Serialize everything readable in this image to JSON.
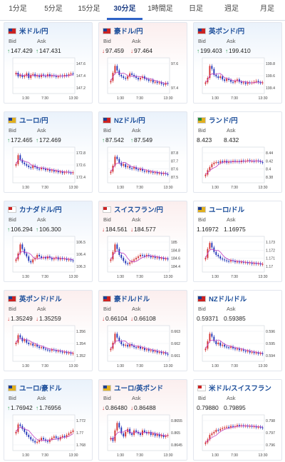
{
  "tabs": [
    "1分足",
    "5分足",
    "15分足",
    "30分足",
    "1時間足",
    "日足",
    "週足",
    "月足"
  ],
  "active_tab": 3,
  "labels": {
    "bid": "Bid",
    "ask": "Ask"
  },
  "colors": {
    "accent": "#2f63c7",
    "up_arrow": "#2e9d52",
    "down_arrow": "#d03030",
    "candle_up": "#d23030",
    "candle_down": "#2438b8",
    "ma_line": "#c040c0"
  },
  "cards": [
    {
      "title": "米ドル/円",
      "dir": "up",
      "bid": "147.429",
      "ask": "147.431",
      "flag": [
        "#1e3d8f",
        "#cc2222"
      ],
      "y_ticks": [
        "147.6",
        "147.4",
        "147.2"
      ],
      "x_ticks": [
        "1:30",
        "7:30",
        "13:30"
      ],
      "trend": [
        0.62,
        0.5,
        0.55,
        0.48,
        0.52,
        0.6,
        0.45,
        0.55,
        0.58,
        0.5,
        0.54,
        0.48,
        0.56,
        0.52,
        0.5,
        0.57,
        0.5,
        0.54,
        0.52,
        0.48,
        0.5,
        0.53,
        0.5,
        0.55,
        0.52,
        0.57,
        0.6,
        0.58
      ]
    },
    {
      "title": "豪ドル/円",
      "dir": "down",
      "bid": "97.459",
      "ask": "97.464",
      "flag": [
        "#1e3d8f",
        "#cc2222"
      ],
      "y_ticks": [
        "97.6",
        "97.4"
      ],
      "x_ticks": [
        "1:30",
        "7:30",
        "13:30"
      ],
      "trend": [
        0.35,
        0.62,
        0.85,
        0.7,
        0.55,
        0.5,
        0.45,
        0.42,
        0.5,
        0.6,
        0.55,
        0.5,
        0.45,
        0.4,
        0.45,
        0.5,
        0.42,
        0.4,
        0.35,
        0.38,
        0.3,
        0.32,
        0.28,
        0.3,
        0.25,
        0.22,
        0.28,
        0.25
      ]
    },
    {
      "title": "英ポンド/円",
      "dir": "up",
      "bid": "199.403",
      "ask": "199.410",
      "flag": [
        "#1e3d8f",
        "#cc2222"
      ],
      "y_ticks": [
        "199.8",
        "199.6",
        "199.4"
      ],
      "x_ticks": [
        "1:30",
        "7:30",
        "13:30"
      ],
      "trend": [
        0.3,
        0.45,
        0.85,
        0.75,
        0.55,
        0.5,
        0.45,
        0.5,
        0.4,
        0.35,
        0.42,
        0.38,
        0.32,
        0.3,
        0.35,
        0.4,
        0.32,
        0.28,
        0.3,
        0.25,
        0.3,
        0.28,
        0.3,
        0.32,
        0.35,
        0.3,
        0.28,
        0.3
      ]
    },
    {
      "title": "ユーロ/円",
      "dir": "up",
      "bid": "172.465",
      "ask": "172.469",
      "flag": [
        "#1e3d8f",
        "#e0b020"
      ],
      "y_ticks": [
        "172.8",
        "172.6",
        "172.4"
      ],
      "x_ticks": [
        "1:30",
        "7:30",
        "13:30"
      ],
      "trend": [
        0.55,
        0.85,
        0.7,
        0.6,
        0.55,
        0.5,
        0.45,
        0.42,
        0.5,
        0.45,
        0.4,
        0.38,
        0.42,
        0.4,
        0.35,
        0.38,
        0.32,
        0.35,
        0.3,
        0.33,
        0.28,
        0.3,
        0.25,
        0.28,
        0.3,
        0.27,
        0.25,
        0.28
      ]
    },
    {
      "title": "NZドル/円",
      "dir": "up",
      "bid": "87.542",
      "ask": "87.549",
      "flag": [
        "#1e3d8f",
        "#cc2222"
      ],
      "y_ticks": [
        "87.8",
        "87.7",
        "87.6",
        "87.5"
      ],
      "x_ticks": [
        "1:30",
        "7:30",
        "13:30"
      ],
      "trend": [
        0.3,
        0.5,
        0.8,
        0.72,
        0.6,
        0.5,
        0.55,
        0.45,
        0.48,
        0.42,
        0.4,
        0.45,
        0.38,
        0.35,
        0.4,
        0.33,
        0.3,
        0.32,
        0.28,
        0.3,
        0.26,
        0.28,
        0.24,
        0.26,
        0.22,
        0.25,
        0.22,
        0.2
      ]
    },
    {
      "title": "ランド/円",
      "dir": "flat",
      "bid": "8.423",
      "ask": "8.432",
      "flag": [
        "#2a8a3a",
        "#e0b020"
      ],
      "y_ticks": [
        "8.44",
        "8.42",
        "8.4",
        "8.38"
      ],
      "x_ticks": [
        "1:30",
        "7:30",
        "13:30"
      ],
      "trend": [
        0.2,
        0.35,
        0.45,
        0.55,
        0.6,
        0.62,
        0.6,
        0.65,
        0.62,
        0.66,
        0.6,
        0.64,
        0.62,
        0.66,
        0.63,
        0.65,
        0.62,
        0.67,
        0.64,
        0.66,
        0.68,
        0.65,
        0.66,
        0.64,
        0.67,
        0.65,
        0.62,
        0.6
      ]
    },
    {
      "title": "カナダドル/円",
      "dir": "up",
      "bid": "106.294",
      "ask": "106.300",
      "flag": [
        "#cc2222",
        "#ffffff"
      ],
      "y_ticks": [
        "106.5",
        "106.4",
        "106.3"
      ],
      "x_ticks": [
        "1:30",
        "7:30",
        "13:30"
      ],
      "trend": [
        0.35,
        0.55,
        0.85,
        0.7,
        0.55,
        0.45,
        0.3,
        0.25,
        0.35,
        0.4,
        0.5,
        0.45,
        0.4,
        0.42,
        0.38,
        0.45,
        0.4,
        0.35,
        0.38,
        0.42,
        0.35,
        0.4,
        0.36,
        0.38,
        0.33,
        0.35,
        0.32,
        0.3
      ]
    },
    {
      "title": "スイスフラン/円",
      "dir": "down",
      "bid": "184.561",
      "ask": "184.577",
      "flag": [
        "#cc2222",
        "#ffffff"
      ],
      "y_ticks": [
        "185",
        "184.8",
        "184.6",
        "184.4"
      ],
      "x_ticks": [
        "1:30",
        "7:30",
        "13:30"
      ],
      "trend": [
        0.35,
        0.6,
        0.85,
        0.7,
        0.5,
        0.4,
        0.3,
        0.22,
        0.2,
        0.25,
        0.3,
        0.35,
        0.4,
        0.45,
        0.5,
        0.48,
        0.45,
        0.5,
        0.46,
        0.42,
        0.45,
        0.4,
        0.42,
        0.38,
        0.4,
        0.36,
        0.38,
        0.35
      ]
    },
    {
      "title": "ユーロ/ドル",
      "dir": "flat",
      "bid": "1.16972",
      "ask": "1.16975",
      "flag": [
        "#1e3d8f",
        "#e0b020"
      ],
      "y_ticks": [
        "1.173",
        "1.172",
        "1.171",
        "1.17"
      ],
      "x_ticks": [
        "1:30",
        "7:30",
        "13:30"
      ],
      "trend": [
        0.4,
        0.7,
        0.9,
        0.75,
        0.6,
        0.5,
        0.45,
        0.38,
        0.35,
        0.32,
        0.3,
        0.28,
        0.32,
        0.3,
        0.26,
        0.28,
        0.25,
        0.27,
        0.24,
        0.26,
        0.22,
        0.25,
        0.2,
        0.23,
        0.2,
        0.22,
        0.18,
        0.2
      ]
    },
    {
      "title": "英ポンド/ドル",
      "dir": "down",
      "bid": "1.35249",
      "ask": "1.35259",
      "flag": [
        "#1e3d8f",
        "#cc2222"
      ],
      "y_ticks": [
        "1.356",
        "1.354",
        "1.352"
      ],
      "x_ticks": [
        "1:30",
        "7:30",
        "13:30"
      ],
      "trend": [
        0.55,
        0.8,
        0.72,
        0.6,
        0.65,
        0.55,
        0.5,
        0.52,
        0.45,
        0.48,
        0.42,
        0.38,
        0.4,
        0.35,
        0.32,
        0.3,
        0.28,
        0.32,
        0.3,
        0.26,
        0.28,
        0.25,
        0.22,
        0.24,
        0.2,
        0.22,
        0.18,
        0.2
      ]
    },
    {
      "title": "豪ドル/ドル",
      "dir": "down",
      "bid": "0.66104",
      "ask": "0.66108",
      "flag": [
        "#1e3d8f",
        "#cc2222"
      ],
      "y_ticks": [
        "0.663",
        "0.662",
        "0.661"
      ],
      "x_ticks": [
        "1:30",
        "7:30",
        "13:30"
      ],
      "trend": [
        0.35,
        0.55,
        0.85,
        0.72,
        0.6,
        0.5,
        0.45,
        0.48,
        0.42,
        0.5,
        0.45,
        0.4,
        0.38,
        0.42,
        0.35,
        0.38,
        0.3,
        0.33,
        0.28,
        0.3,
        0.25,
        0.28,
        0.22,
        0.24,
        0.2,
        0.22,
        0.18,
        0.15
      ]
    },
    {
      "title": "NZドル/ドル",
      "dir": "flat",
      "bid": "0.59371",
      "ask": "0.59385",
      "flag": [
        "#1e3d8f",
        "#cc2222"
      ],
      "y_ticks": [
        "0.596",
        "0.595",
        "0.594"
      ],
      "x_ticks": [
        "1:30",
        "7:30",
        "13:30"
      ],
      "trend": [
        0.35,
        0.6,
        0.85,
        0.75,
        0.6,
        0.5,
        0.55,
        0.45,
        0.48,
        0.42,
        0.4,
        0.38,
        0.42,
        0.36,
        0.33,
        0.35,
        0.3,
        0.32,
        0.28,
        0.25,
        0.28,
        0.22,
        0.24,
        0.2,
        0.22,
        0.18,
        0.2,
        0.17
      ]
    },
    {
      "title": "ユーロ/豪ドル",
      "dir": "up",
      "bid": "1.76942",
      "ask": "1.76956",
      "flag": [
        "#1e3d8f",
        "#e0b020"
      ],
      "y_ticks": [
        "1.772",
        "1.77",
        "1.768"
      ],
      "x_ticks": [
        "1:30",
        "7:30",
        "13:30"
      ],
      "trend": [
        0.55,
        0.8,
        0.75,
        0.65,
        0.55,
        0.45,
        0.38,
        0.3,
        0.25,
        0.2,
        0.22,
        0.28,
        0.35,
        0.3,
        0.25,
        0.22,
        0.3,
        0.35,
        0.4,
        0.35,
        0.3,
        0.38,
        0.42,
        0.38,
        0.45,
        0.5,
        0.55,
        0.6
      ]
    },
    {
      "title": "ユーロ/英ポンド",
      "dir": "down",
      "bid": "0.86480",
      "ask": "0.86488",
      "flag": [
        "#1e3d8f",
        "#e0b020"
      ],
      "y_ticks": [
        "0.8655",
        "0.865",
        "0.8645"
      ],
      "x_ticks": [
        "1:30",
        "7:30",
        "13:30"
      ],
      "trend": [
        0.35,
        0.25,
        0.6,
        0.85,
        0.7,
        0.5,
        0.4,
        0.55,
        0.65,
        0.5,
        0.45,
        0.6,
        0.55,
        0.5,
        0.45,
        0.6,
        0.55,
        0.5,
        0.55,
        0.45,
        0.5,
        0.42,
        0.48,
        0.4,
        0.45,
        0.38,
        0.42,
        0.45
      ]
    },
    {
      "title": "米ドル/スイスフラン",
      "dir": "flat",
      "bid": "0.79880",
      "ask": "0.79895",
      "flag": [
        "#cc2222",
        "#ffffff"
      ],
      "y_ticks": [
        "0.798",
        "0.797",
        "0.796"
      ],
      "x_ticks": [
        "1:30",
        "7:30",
        "13:30"
      ],
      "trend": [
        0.2,
        0.3,
        0.45,
        0.5,
        0.55,
        0.62,
        0.6,
        0.65,
        0.68,
        0.7,
        0.72,
        0.7,
        0.75,
        0.72,
        0.74,
        0.78,
        0.75,
        0.77,
        0.74,
        0.76,
        0.73,
        0.75,
        0.72,
        0.74,
        0.7,
        0.72,
        0.7,
        0.68
      ]
    }
  ]
}
